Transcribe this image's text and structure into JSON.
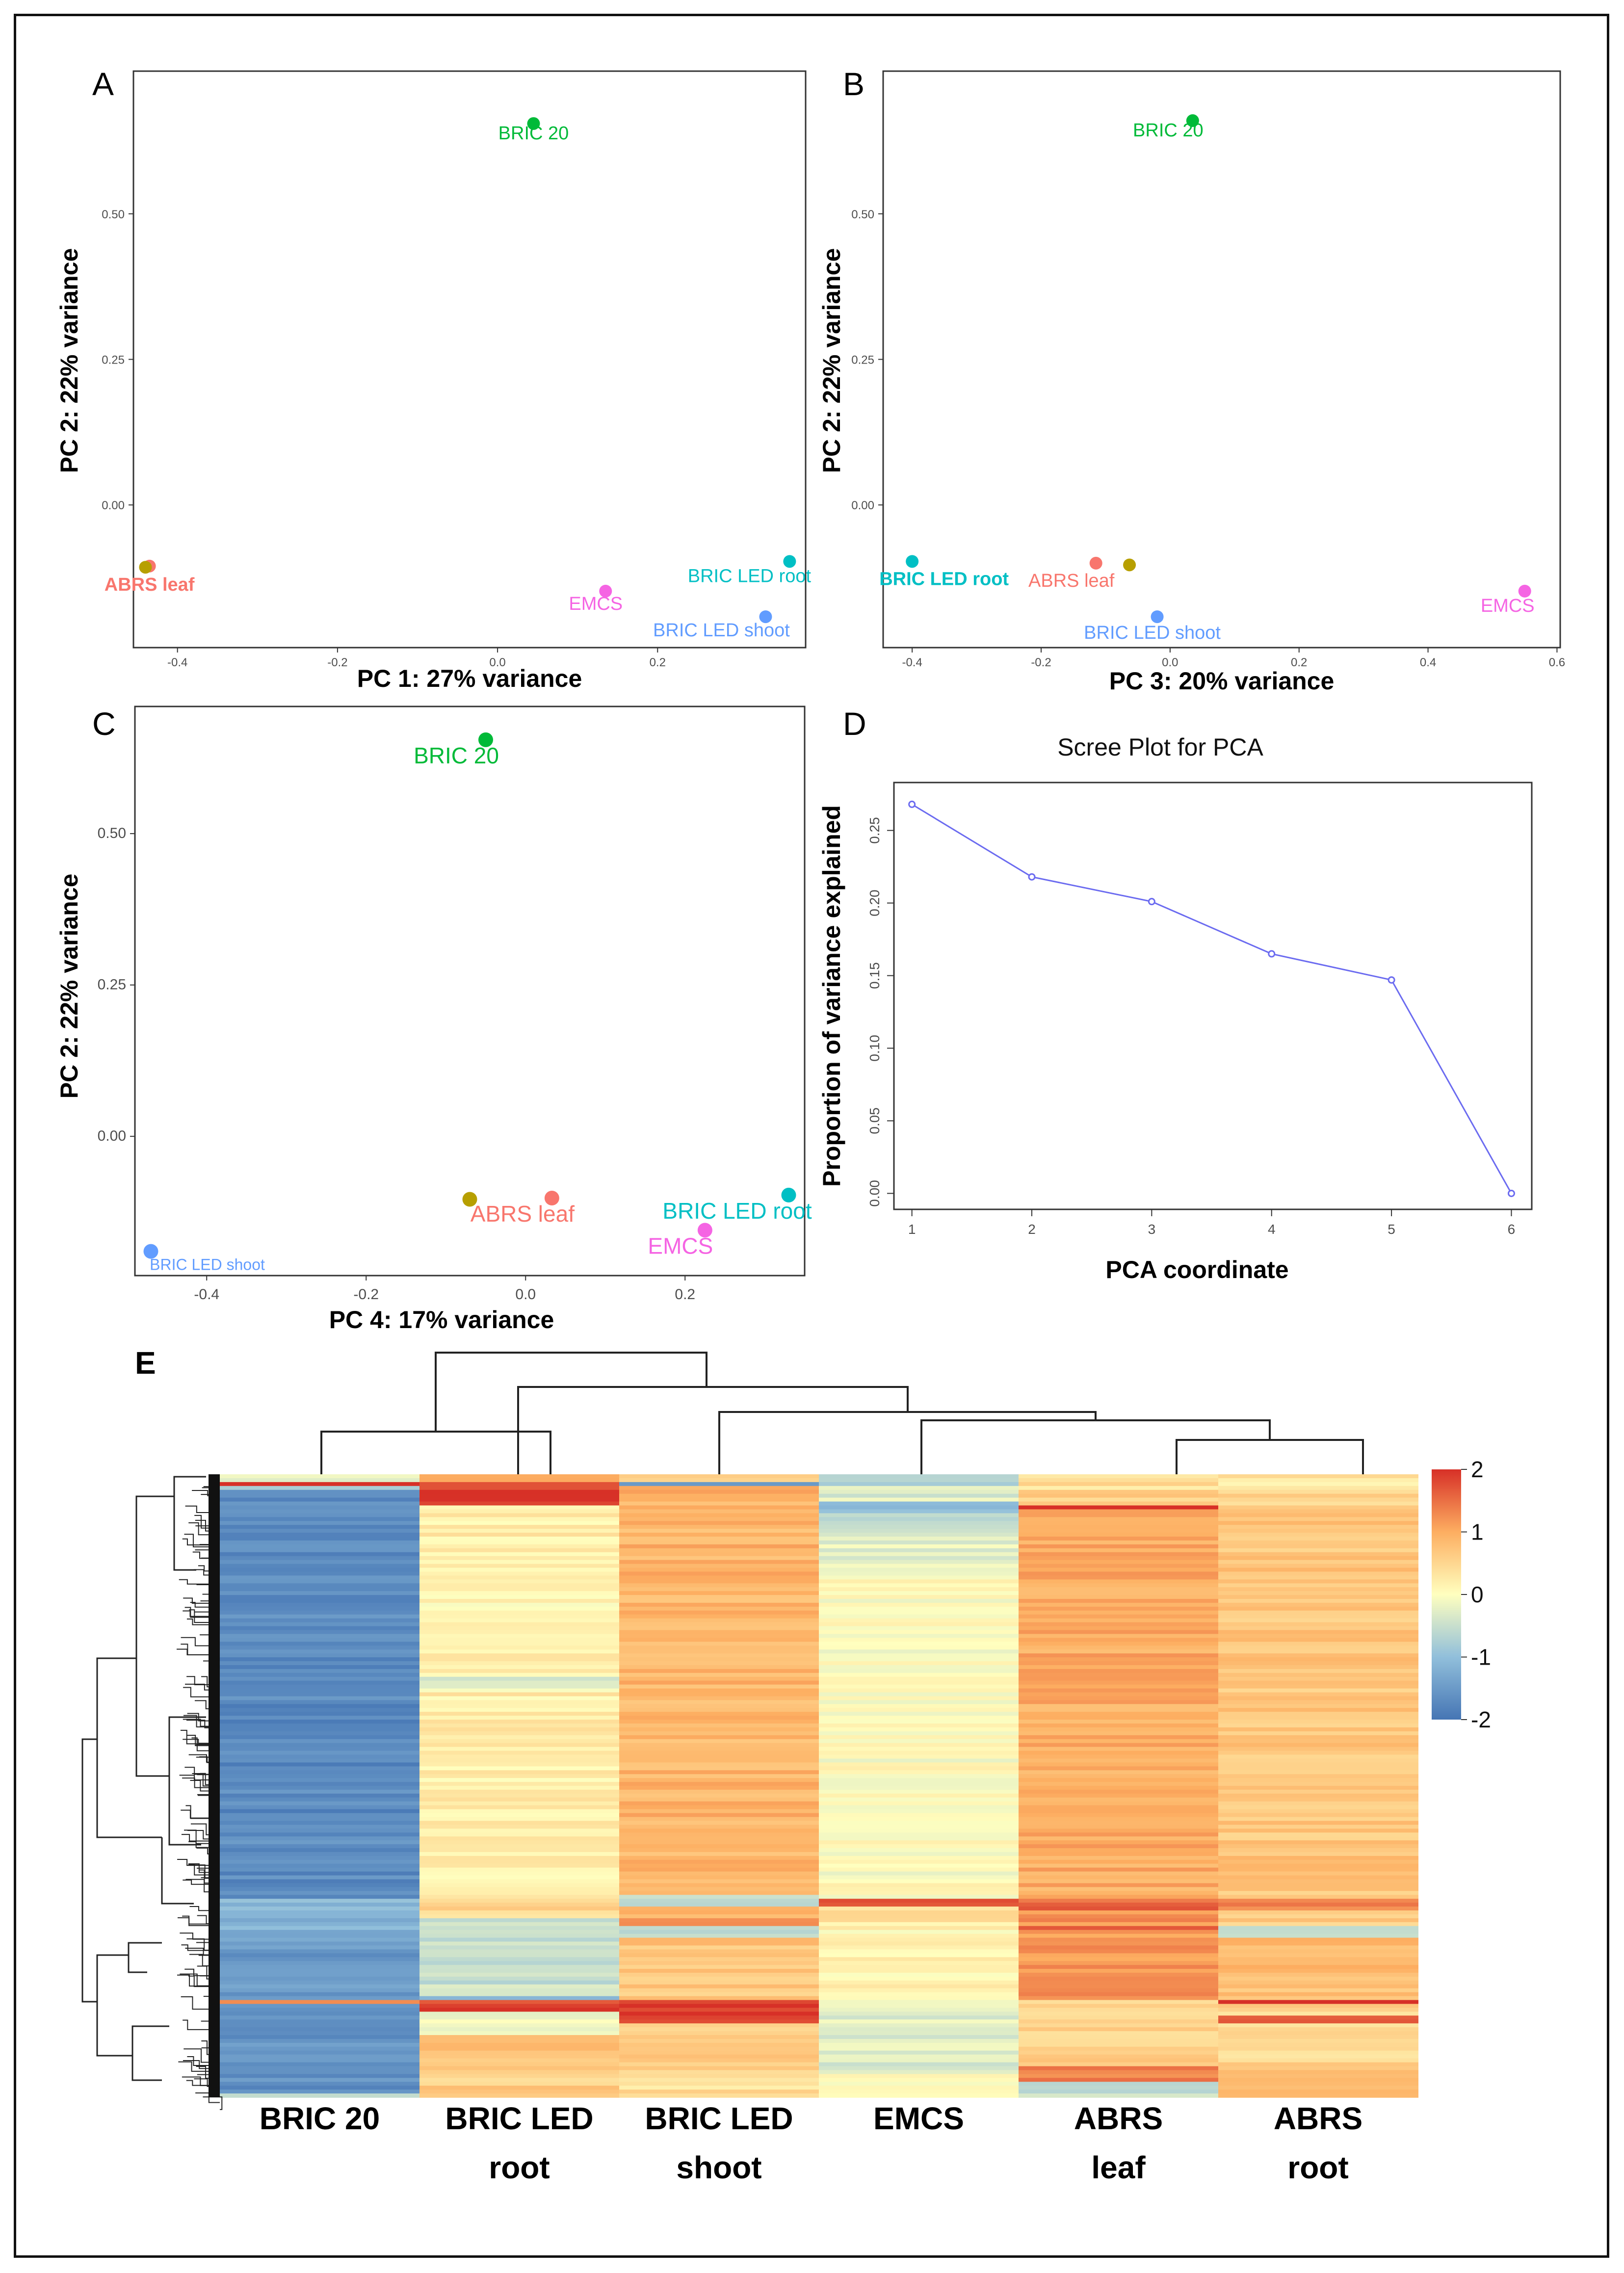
{
  "chart_data": [
    {
      "type": "scatter",
      "panel": "A",
      "xlabel": "PC 1: 27% variance",
      "ylabel": "PC 2: 22% variance",
      "xlim": [
        -0.455,
        0.385
      ],
      "ylim": [
        -0.245,
        0.745
      ],
      "xticks": [
        -0.4,
        -0.2,
        0.0,
        0.2
      ],
      "xtick_labels": [
        "-0.4",
        "-0.2",
        "0.0",
        "0.2"
      ],
      "yticks": [
        0.0,
        0.25,
        0.5
      ],
      "ytick_labels": [
        "0.00",
        "0.25",
        "0.50"
      ],
      "label_size": 38,
      "points": [
        {
          "x": 0.045,
          "y": 0.655,
          "color": "#00ba38",
          "label": "BRIC 20",
          "ldx": 0,
          "ldy": 32
        },
        {
          "x": -0.435,
          "y": -0.105,
          "color": "#f8766d",
          "label": "ABRS leaf",
          "ldx": 0,
          "ldy": 50,
          "bold": true
        },
        {
          "x": -0.44,
          "y": -0.107,
          "color": "#b79f00"
        },
        {
          "x": 0.135,
          "y": -0.148,
          "color": "#f564e3",
          "label": "EMCS",
          "ldx": -20,
          "ldy": 38
        },
        {
          "x": 0.365,
          "y": -0.097,
          "color": "#00bfc4",
          "label": "BRIC LED root",
          "ldx": -82,
          "ldy": 42
        },
        {
          "x": 0.335,
          "y": -0.192,
          "color": "#619cff",
          "label": "BRIC LED shoot",
          "ldx": -90,
          "ldy": 40
        }
      ]
    },
    {
      "type": "scatter",
      "panel": "B",
      "xlabel": "PC 3: 20% variance",
      "ylabel": "PC 2: 22% variance",
      "xlim": [
        -0.445,
        0.605
      ],
      "ylim": [
        -0.245,
        0.745
      ],
      "xticks": [
        -0.4,
        -0.2,
        0.0,
        0.2,
        0.4,
        0.6
      ],
      "xtick_labels": [
        "-0.4",
        "-0.2",
        "0.0",
        "0.2",
        "0.4",
        "0.6"
      ],
      "yticks": [
        0.0,
        0.25,
        0.5
      ],
      "ytick_labels": [
        "0.00",
        "0.25",
        "0.50"
      ],
      "label_size": 38,
      "points": [
        {
          "x": 0.035,
          "y": 0.66,
          "color": "#00ba38",
          "label": "BRIC 20",
          "ldx": -50,
          "ldy": 32
        },
        {
          "x": -0.4,
          "y": -0.097,
          "color": "#00bfc4",
          "label": "BRIC LED root",
          "ldx": 65,
          "ldy": 48,
          "bold": true
        },
        {
          "x": -0.115,
          "y": -0.1,
          "color": "#f8766d",
          "label": "ABRS leaf",
          "ldx": -50,
          "ldy": 48
        },
        {
          "x": -0.063,
          "y": -0.103,
          "color": "#b79f00"
        },
        {
          "x": -0.02,
          "y": -0.192,
          "color": "#619cff",
          "label": "BRIC LED shoot",
          "ldx": -10,
          "ldy": 45
        },
        {
          "x": 0.55,
          "y": -0.148,
          "color": "#f564e3",
          "label": "EMCS",
          "ldx": -35,
          "ldy": 42
        }
      ]
    },
    {
      "type": "scatter",
      "panel": "C",
      "xlabel": "PC 4: 17% variance",
      "ylabel": "PC 2: 22% variance",
      "xlim": [
        -0.49,
        0.35
      ],
      "ylim": [
        -0.23,
        0.71
      ],
      "xticks": [
        -0.4,
        -0.2,
        0.0,
        0.2
      ],
      "xtick_labels": [
        "-0.4",
        "-0.2",
        "0.0",
        "0.2"
      ],
      "yticks": [
        0.0,
        0.25,
        0.5
      ],
      "ytick_labels": [
        "0.00",
        "0.25",
        "0.50"
      ],
      "label_size": 46,
      "points": [
        {
          "x": -0.05,
          "y": 0.655,
          "color": "#00ba38",
          "label": "BRIC 20",
          "ldx": -60,
          "ldy": 48
        },
        {
          "x": -0.07,
          "y": -0.104,
          "color": "#b79f00"
        },
        {
          "x": 0.033,
          "y": -0.102,
          "color": "#f8766d",
          "label": "ABRS leaf",
          "ldx": -60,
          "ldy": 48
        },
        {
          "x": 0.33,
          "y": -0.097,
          "color": "#00bfc4",
          "label": "BRIC LED root",
          "ldx": -105,
          "ldy": 48
        },
        {
          "x": 0.225,
          "y": -0.155,
          "color": "#f564e3",
          "label": "EMCS",
          "ldx": -50,
          "ldy": 48
        },
        {
          "x": -0.47,
          "y": -0.19,
          "color": "#619cff",
          "label": "BRIC LED shoot",
          "ldx": 115,
          "ldy": 38,
          "small": true
        }
      ]
    },
    {
      "type": "line",
      "panel": "D",
      "title": "Scree Plot for PCA",
      "xlabel": "PCA coordinate",
      "ylabel": "Proportion of variance explained",
      "x": [
        1,
        2,
        3,
        4,
        5,
        6
      ],
      "values": [
        0.268,
        0.218,
        0.201,
        0.165,
        0.147,
        0.0
      ],
      "xlim": [
        0.85,
        6.17
      ],
      "ylim": [
        -0.011,
        0.283
      ],
      "xticks": [
        1,
        2,
        3,
        4,
        5,
        6
      ],
      "xtick_labels": [
        "1",
        "2",
        "3",
        "4",
        "5",
        "6"
      ],
      "yticks": [
        0.0,
        0.05,
        0.1,
        0.15,
        0.2,
        0.25
      ],
      "ytick_labels": [
        "0.00",
        "0.05",
        "0.10",
        "0.15",
        "0.20",
        "0.25"
      ],
      "color": "#6b6bf0"
    },
    {
      "type": "heatmap",
      "panel": "E",
      "columns": [
        {
          "label1": "BRIC 20",
          "label2": ""
        },
        {
          "label1": "BRIC LED",
          "label2": "root"
        },
        {
          "label1": "BRIC LED",
          "label2": "shoot"
        },
        {
          "label1": "EMCS",
          "label2": ""
        },
        {
          "label1": "ABRS",
          "label2": "leaf"
        },
        {
          "label1": "ABRS",
          "label2": "root"
        }
      ],
      "colorbar": {
        "min": -2,
        "max": 2,
        "ticks": [
          2,
          1,
          0,
          -1,
          -2
        ],
        "tick_labels": [
          "2",
          "1",
          "0",
          "-1",
          "-2"
        ],
        "colors": [
          "#4575b4",
          "#91bfdb",
          "#ffffbf",
          "#fdae61",
          "#d73027"
        ]
      },
      "column_bands": [
        [
          [
            0,
            -0.2
          ],
          [
            0.008,
            2
          ],
          [
            0.016,
            -1.0
          ],
          [
            0.025,
            -1.7
          ],
          [
            0.68,
            -1.1
          ],
          [
            0.728,
            -1.5
          ],
          [
            0.84,
            1.4
          ],
          [
            0.85,
            -1.6
          ],
          [
            0.99,
            -0.5
          ],
          [
            1.0,
            -1.6
          ]
        ],
        [
          [
            0,
            1.2
          ],
          [
            0.008,
            1.9
          ],
          [
            0.045,
            0.2
          ],
          [
            0.1,
            0.15
          ],
          [
            0.32,
            -0.25
          ],
          [
            0.35,
            0.2
          ],
          [
            0.675,
            0.5
          ],
          [
            0.71,
            -0.5
          ],
          [
            0.835,
            -1.0
          ],
          [
            0.84,
            1.8
          ],
          [
            0.86,
            -0.2
          ],
          [
            0.9,
            0.8
          ],
          [
            0.95,
            0.6
          ]
        ],
        [
          [
            0,
            0.4
          ],
          [
            0.008,
            -1.6
          ],
          [
            0.016,
            0.9
          ],
          [
            0.67,
            -0.6
          ],
          [
            0.69,
            0.8
          ],
          [
            0.71,
            1.3
          ],
          [
            0.725,
            -0.7
          ],
          [
            0.74,
            0.7
          ],
          [
            0.84,
            1.9
          ],
          [
            0.88,
            0.6
          ],
          [
            0.96,
            0.4
          ]
        ],
        [
          [
            0,
            -0.8
          ],
          [
            0.016,
            -0.3
          ],
          [
            0.04,
            -0.9
          ],
          [
            0.06,
            -0.5
          ],
          [
            0.1,
            -0.2
          ],
          [
            0.14,
            0.0
          ],
          [
            0.68,
            1.7
          ],
          [
            0.69,
            0.3
          ],
          [
            0.72,
            0.1
          ],
          [
            0.84,
            -0.3
          ],
          [
            0.96,
            0.1
          ]
        ],
        [
          [
            0,
            0.4
          ],
          [
            0.02,
            0.6
          ],
          [
            0.045,
            1.8
          ],
          [
            0.055,
            1.0
          ],
          [
            0.68,
            1.6
          ],
          [
            0.7,
            1.2
          ],
          [
            0.72,
            1.7
          ],
          [
            0.73,
            1.2
          ],
          [
            0.84,
            0.6
          ],
          [
            0.95,
            1.4
          ],
          [
            0.97,
            -0.5
          ]
        ],
        [
          [
            0,
            0.3
          ],
          [
            0.016,
            0.5
          ],
          [
            0.045,
            0.7
          ],
          [
            0.68,
            1.4
          ],
          [
            0.7,
            0.6
          ],
          [
            0.72,
            -0.6
          ],
          [
            0.74,
            0.8
          ],
          [
            0.84,
            1.9
          ],
          [
            0.85,
            0.5
          ],
          [
            0.865,
            1.5
          ],
          [
            0.88,
            0.5
          ],
          [
            0.95,
            0.8
          ]
        ]
      ]
    }
  ],
  "panel_labels": {
    "A": "A",
    "B": "B",
    "C": "C",
    "D": "D",
    "E": "E"
  }
}
